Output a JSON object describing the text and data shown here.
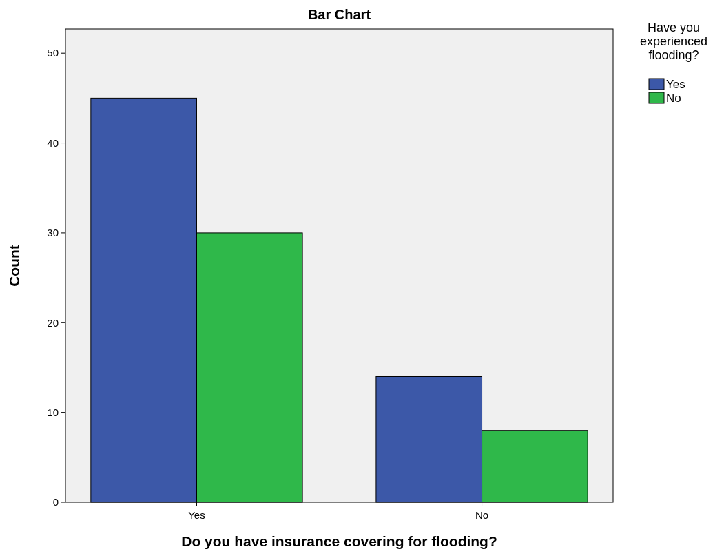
{
  "chart_data": {
    "type": "bar",
    "title": "Bar Chart",
    "xlabel": "Do you have insurance covering for flooding?",
    "ylabel": "Count",
    "legend_title": "Have you experienced flooding?",
    "categories": [
      "Yes",
      "No"
    ],
    "series": [
      {
        "name": "Yes",
        "color": "#3c58a8",
        "values": [
          45,
          14
        ]
      },
      {
        "name": "No",
        "color": "#2fb84a",
        "values": [
          30,
          8
        ]
      }
    ],
    "ylim": [
      0,
      52.7
    ],
    "yticks": [
      0,
      10,
      20,
      30,
      40,
      50
    ],
    "grid": false,
    "legend": "right"
  }
}
